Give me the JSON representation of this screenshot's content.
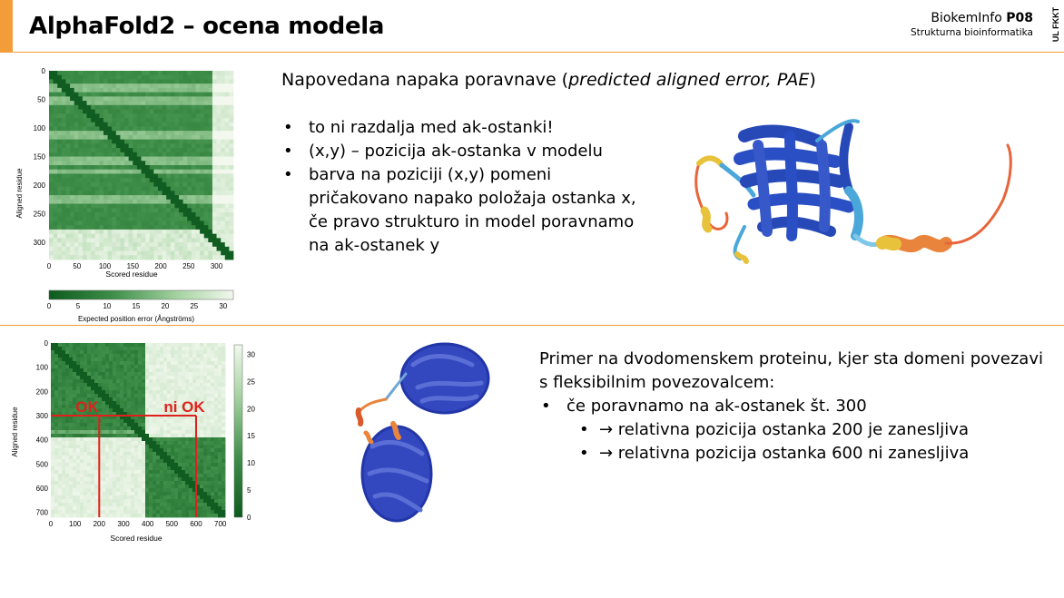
{
  "header": {
    "title": "AlphaFold2 – ocena modela",
    "course_prefix": "BiokemInfo ",
    "course_code": "P08",
    "subtitle": "Strukturna bioinformatika",
    "institution": "UL FKKT",
    "accent_color": "#f39c3a"
  },
  "top_section": {
    "heading_prefix": "Napovedana napaka poravnave (",
    "heading_italic": "predicted aligned error, PAE",
    "heading_suffix": ")",
    "bullets": [
      "to ni razdalja med ak-ostanki!",
      "(x,y) – pozicija ak-ostanka v modelu",
      "barva na poziciji (x,y) pomeni pričakovano napako položaja ostanka x, če pravo strukturo in model poravnamo na ak-ostanek y"
    ]
  },
  "bottom_section": {
    "intro": "Primer na dvodomenskem proteinu, kjer sta domeni povezavi s fleksibilnim povezovalcem:",
    "bullet": "če poravnamo na ak-ostanek št. 300",
    "sub_bullets": [
      "→ relativna pozicija ostanka 200 je zanesljiva",
      "→ relativna pozicija ostanka 600 ni zanesljiva"
    ]
  },
  "chart_data": [
    {
      "type": "heatmap",
      "xlabel": "Scored residue",
      "ylabel": "Aligned residue",
      "x_ticks": [
        "0",
        "50",
        "100",
        "150",
        "200",
        "250",
        "300"
      ],
      "y_ticks": [
        "0",
        "50",
        "100",
        "150",
        "200",
        "250",
        "300"
      ],
      "xlim": [
        0,
        330
      ],
      "ylim": [
        0,
        330
      ],
      "colorbar": {
        "label": "Expected position error (Ångströms)",
        "ticks": [
          "0",
          "5",
          "10",
          "15",
          "20",
          "25",
          "30"
        ],
        "range": [
          0,
          31.75
        ],
        "orientation": "horizontal"
      },
      "colors": {
        "low": "#0e5a1e",
        "high": "#f2f8ee"
      }
    },
    {
      "type": "heatmap",
      "xlabel": "Scored residue",
      "ylabel": "Aligned residue",
      "x_ticks": [
        "0",
        "100",
        "200",
        "300",
        "400",
        "500",
        "600",
        "700"
      ],
      "y_ticks": [
        "0",
        "100",
        "200",
        "300",
        "400",
        "500",
        "600",
        "700"
      ],
      "xlim": [
        0,
        720
      ],
      "ylim": [
        0,
        720
      ],
      "domain_boundary": 390,
      "annotations": [
        {
          "text": "OK",
          "color": "#e0201c"
        },
        {
          "text": "ni OK",
          "color": "#e0201c"
        }
      ],
      "guide_lines": {
        "aligned_residue": 300,
        "scored_residues": [
          200,
          600
        ],
        "color": "#e0201c"
      },
      "colorbar": {
        "ticks": [
          "0",
          "5",
          "10",
          "15",
          "20",
          "25",
          "30"
        ],
        "range": [
          0,
          31.75
        ],
        "orientation": "vertical"
      }
    }
  ]
}
